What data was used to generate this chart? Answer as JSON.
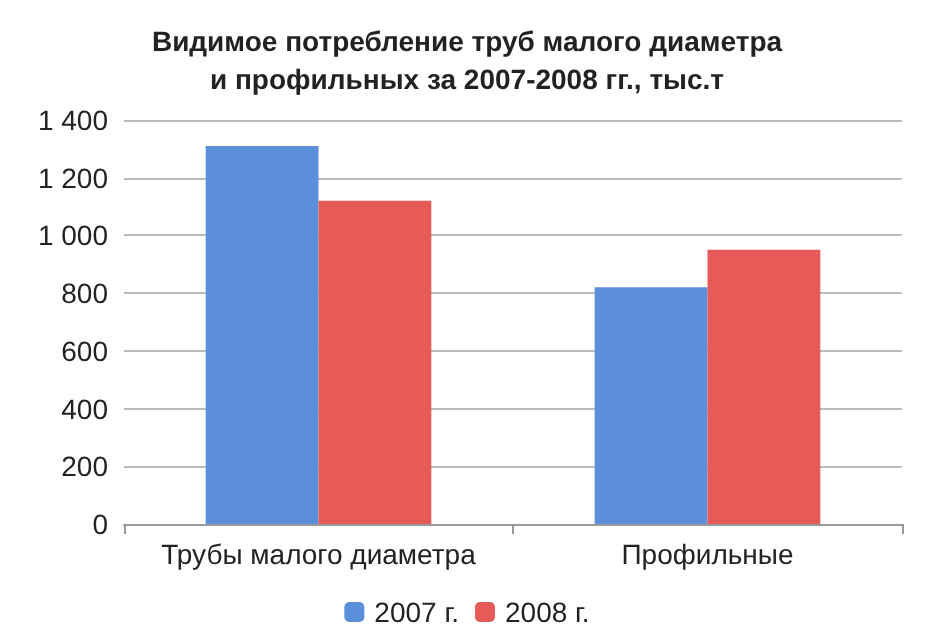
{
  "chart_data": {
    "type": "bar",
    "title": "Видимое потребление труб малого диаметра\nи профильных за 2007-2008 гг., тыс.т",
    "categories": [
      "Трубы малого диаметра",
      "Профильные"
    ],
    "series": [
      {
        "name": "2007 г.",
        "color": "#5b8fdc",
        "values": [
          1310,
          820
        ]
      },
      {
        "name": "2008 г.",
        "color": "#e65a58",
        "values": [
          1120,
          950
        ]
      }
    ],
    "ylim": [
      0,
      1400
    ],
    "yticks": [
      0,
      200,
      400,
      600,
      800,
      {
        "value": 1000,
        "label": "1 000"
      },
      {
        "value": 1200,
        "label": "1 200"
      },
      {
        "value": 1400,
        "label": "1 400"
      }
    ],
    "grid": "y",
    "legend": "bottom"
  }
}
